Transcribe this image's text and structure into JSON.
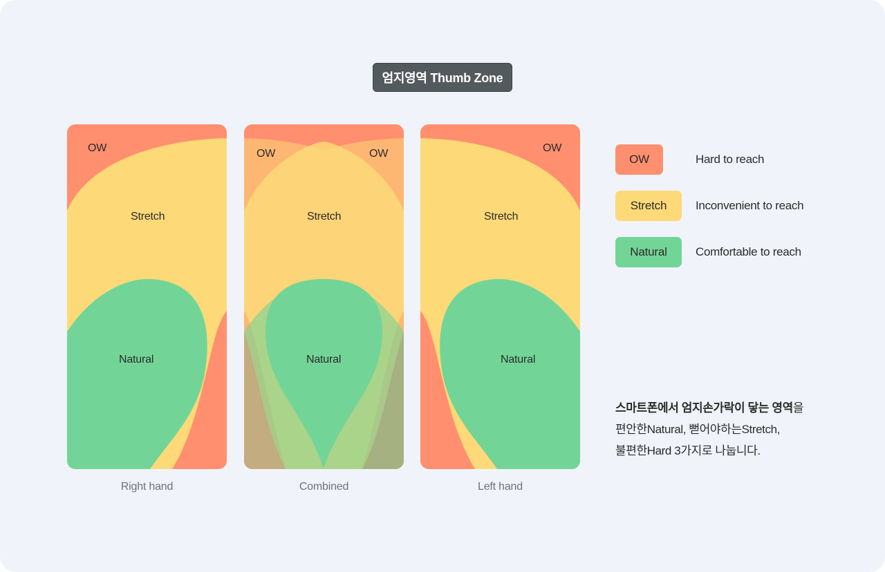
{
  "title": "엄지영역 Thumb Zone",
  "colors": {
    "background": "#f0f4fa",
    "ow": "#ff8f6e",
    "stretch": "#fdd978",
    "natural": "#72d597"
  },
  "zones": {
    "ow": "OW",
    "stretch": "Stretch",
    "natural": "Natural"
  },
  "panels": [
    {
      "caption": "Right hand"
    },
    {
      "caption": "Combined"
    },
    {
      "caption": "Left hand"
    }
  ],
  "legend": [
    {
      "label": "OW",
      "description": "Hard to reach"
    },
    {
      "label": "Stretch",
      "description": "Inconvenient to reach"
    },
    {
      "label": "Natural",
      "description": "Comfortable to reach"
    }
  ],
  "description": {
    "bold": "스마트폰에서 엄지손가락이 닿는 영역",
    "rest1": "을",
    "line2": "편안한Natural, 뻗어야하는Stretch,",
    "line3": "불편한Hard 3가지로 나눕니다."
  }
}
